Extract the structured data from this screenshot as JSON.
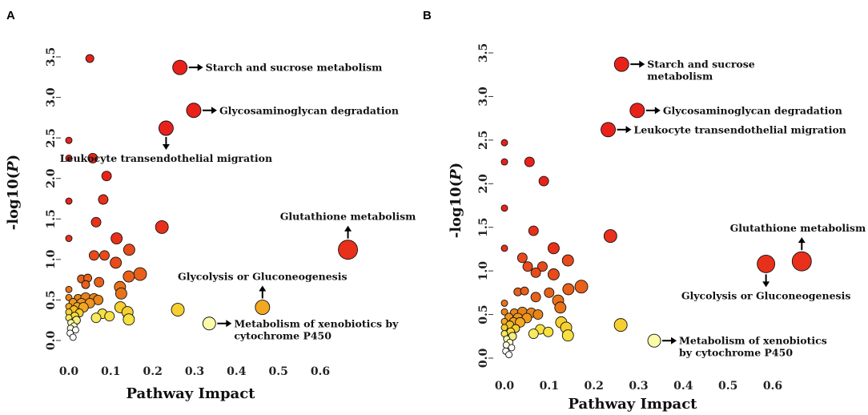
{
  "chart_data": [
    {
      "type": "scatter",
      "panel": "A",
      "xlabel": "Pathway Impact",
      "ylabel_prefix": "-log10(",
      "ylabel_italic": "P",
      "ylabel_suffix": ")",
      "xlim": [
        0,
        0.65
      ],
      "ylim": [
        0,
        3.6
      ],
      "xticks": [
        "0.0",
        "0.1",
        "0.2",
        "0.3",
        "0.4",
        "0.5",
        "0.6"
      ],
      "yticks": [
        "0.0",
        "0.5",
        "1.0",
        "1.5",
        "2.0",
        "2.5",
        "3.0",
        "3.5"
      ],
      "points": [
        {
          "x": 0.05,
          "y": 3.48,
          "r": 5,
          "color": "#e8221a"
        },
        {
          "x": 0.265,
          "y": 3.37,
          "r": 9,
          "color": "#e8221a"
        },
        {
          "x": 0.298,
          "y": 2.84,
          "r": 9,
          "color": "#e8221a"
        },
        {
          "x": 0.232,
          "y": 2.62,
          "r": 9,
          "color": "#e8221a"
        },
        {
          "x": 0.0,
          "y": 2.47,
          "r": 4,
          "color": "#e8221a"
        },
        {
          "x": 0.0,
          "y": 2.25,
          "r": 4,
          "color": "#e8221a"
        },
        {
          "x": 0.057,
          "y": 2.25,
          "r": 6,
          "color": "#e8221a"
        },
        {
          "x": 0.09,
          "y": 2.03,
          "r": 6,
          "color": "#e8221a"
        },
        {
          "x": 0.0,
          "y": 1.72,
          "r": 4,
          "color": "#e8221a"
        },
        {
          "x": 0.082,
          "y": 1.74,
          "r": 6,
          "color": "#e8301a"
        },
        {
          "x": 0.065,
          "y": 1.46,
          "r": 6,
          "color": "#e8301a"
        },
        {
          "x": 0.222,
          "y": 1.4,
          "r": 8,
          "color": "#e8301a"
        },
        {
          "x": 0.0,
          "y": 1.26,
          "r": 4,
          "color": "#e8301a"
        },
        {
          "x": 0.114,
          "y": 1.26,
          "r": 7,
          "color": "#e8301a"
        },
        {
          "x": 0.666,
          "y": 1.12,
          "r": 12,
          "color": "#e8301a"
        },
        {
          "x": 0.144,
          "y": 1.12,
          "r": 7,
          "color": "#e84a1a"
        },
        {
          "x": 0.06,
          "y": 1.05,
          "r": 6,
          "color": "#e84a1a"
        },
        {
          "x": 0.085,
          "y": 1.05,
          "r": 6,
          "color": "#e84a1a"
        },
        {
          "x": 0.112,
          "y": 0.96,
          "r": 7,
          "color": "#e84a1a"
        },
        {
          "x": 0.17,
          "y": 0.82,
          "r": 8,
          "color": "#e8601a"
        },
        {
          "x": 0.143,
          "y": 0.79,
          "r": 7,
          "color": "#e8601a"
        },
        {
          "x": 0.03,
          "y": 0.76,
          "r": 5,
          "color": "#e8601a"
        },
        {
          "x": 0.045,
          "y": 0.77,
          "r": 5,
          "color": "#e8601a"
        },
        {
          "x": 0.072,
          "y": 0.72,
          "r": 6,
          "color": "#e8601a"
        },
        {
          "x": 0.04,
          "y": 0.69,
          "r": 5,
          "color": "#e8601a"
        },
        {
          "x": 0.122,
          "y": 0.66,
          "r": 7,
          "color": "#e8721a"
        },
        {
          "x": 0.0,
          "y": 0.63,
          "r": 4,
          "color": "#e8721a"
        },
        {
          "x": 0.125,
          "y": 0.58,
          "r": 7,
          "color": "#e8721a"
        },
        {
          "x": 0.0,
          "y": 0.53,
          "r": 4,
          "color": "#e8841a"
        },
        {
          "x": 0.022,
          "y": 0.52,
          "r": 5,
          "color": "#e8841a"
        },
        {
          "x": 0.04,
          "y": 0.53,
          "r": 6,
          "color": "#e8841a"
        },
        {
          "x": 0.06,
          "y": 0.52,
          "r": 6,
          "color": "#e8841a"
        },
        {
          "x": 0.07,
          "y": 0.5,
          "r": 6,
          "color": "#e8841a"
        },
        {
          "x": 0.01,
          "y": 0.47,
          "r": 5,
          "color": "#ee961e"
        },
        {
          "x": 0.03,
          "y": 0.46,
          "r": 6,
          "color": "#ee961e"
        },
        {
          "x": 0.05,
          "y": 0.46,
          "r": 6,
          "color": "#ee961e"
        },
        {
          "x": 0.0,
          "y": 0.42,
          "r": 4,
          "color": "#f2a820"
        },
        {
          "x": 0.02,
          "y": 0.42,
          "r": 5,
          "color": "#f2a820"
        },
        {
          "x": 0.035,
          "y": 0.41,
          "r": 6,
          "color": "#f2a820"
        },
        {
          "x": 0.462,
          "y": 0.41,
          "r": 9,
          "color": "#f2a820"
        },
        {
          "x": 0.012,
          "y": 0.38,
          "r": 5,
          "color": "#f6be24"
        },
        {
          "x": 0.123,
          "y": 0.41,
          "r": 7,
          "color": "#f6d030"
        },
        {
          "x": 0.26,
          "y": 0.38,
          "r": 8,
          "color": "#f6d030"
        },
        {
          "x": 0.0,
          "y": 0.35,
          "r": 4,
          "color": "#f6d030"
        },
        {
          "x": 0.025,
          "y": 0.34,
          "r": 5,
          "color": "#f6d030"
        },
        {
          "x": 0.14,
          "y": 0.35,
          "r": 7,
          "color": "#f6d030"
        },
        {
          "x": 0.08,
          "y": 0.33,
          "r": 6,
          "color": "#f8e040"
        },
        {
          "x": 0.097,
          "y": 0.3,
          "r": 6,
          "color": "#f8e040"
        },
        {
          "x": 0.014,
          "y": 0.3,
          "r": 5,
          "color": "#f8e040"
        },
        {
          "x": 0.143,
          "y": 0.26,
          "r": 7,
          "color": "#f8e040"
        },
        {
          "x": 0.065,
          "y": 0.28,
          "r": 6,
          "color": "#f8ea60"
        },
        {
          "x": 0.0,
          "y": 0.28,
          "r": 4,
          "color": "#f8ea60"
        },
        {
          "x": 0.018,
          "y": 0.25,
          "r": 5,
          "color": "#f8ee80"
        },
        {
          "x": 0.335,
          "y": 0.21,
          "r": 8,
          "color": "#fafaa8"
        },
        {
          "x": 0.005,
          "y": 0.22,
          "r": 4,
          "color": "#fafaa8"
        },
        {
          "x": 0.012,
          "y": 0.18,
          "r": 4,
          "color": "#fafacc"
        },
        {
          "x": 0.004,
          "y": 0.15,
          "r": 4,
          "color": "#fbfbe4"
        },
        {
          "x": 0.016,
          "y": 0.13,
          "r": 4,
          "color": "#ffffff"
        },
        {
          "x": 0.003,
          "y": 0.09,
          "r": 4,
          "color": "#ffffff"
        },
        {
          "x": 0.01,
          "y": 0.04,
          "r": 4,
          "color": "#ffffff"
        }
      ],
      "annotations": [
        {
          "lines": [
            "Starch and sucrose metabolism"
          ],
          "x": 0.265,
          "y": 3.37,
          "dir": "right"
        },
        {
          "lines": [
            "Glycosaminoglycan degradation"
          ],
          "x": 0.298,
          "y": 2.84,
          "dir": "right"
        },
        {
          "lines": [
            "Leukocyte transendothelial migration"
          ],
          "x": 0.232,
          "y": 2.62,
          "dir": "down"
        },
        {
          "lines": [
            "Glutathione metabolism"
          ],
          "x": 0.666,
          "y": 1.12,
          "dir": "up"
        },
        {
          "lines": [
            "Glycolysis or Gluconeogenesis"
          ],
          "x": 0.462,
          "y": 0.41,
          "dir": "up"
        },
        {
          "lines": [
            "Metabolism of xenobiotics by",
            "cytochrome P450"
          ],
          "x": 0.335,
          "y": 0.21,
          "dir": "right"
        }
      ]
    },
    {
      "type": "scatter",
      "panel": "B",
      "xlabel": "Pathway Impact",
      "ylabel_prefix": "-log10(",
      "ylabel_italic": "P",
      "ylabel_suffix": ")",
      "xlim": [
        0,
        0.65
      ],
      "ylim": [
        0,
        3.6
      ],
      "xticks": [
        "0.0",
        "0.1",
        "0.2",
        "0.3",
        "0.4",
        "0.5",
        "0.6"
      ],
      "yticks": [
        "0.0",
        "0.5",
        "1.0",
        "1.5",
        "2.0",
        "2.5",
        "3.0",
        "3.5"
      ],
      "points": [
        {
          "x": 0.262,
          "y": 3.37,
          "r": 9,
          "color": "#e8221a"
        },
        {
          "x": 0.297,
          "y": 2.84,
          "r": 9,
          "color": "#e8221a"
        },
        {
          "x": 0.232,
          "y": 2.62,
          "r": 9,
          "color": "#e8221a"
        },
        {
          "x": 0.0,
          "y": 2.47,
          "r": 4,
          "color": "#e8221a"
        },
        {
          "x": 0.0,
          "y": 2.25,
          "r": 4,
          "color": "#e8221a"
        },
        {
          "x": 0.056,
          "y": 2.25,
          "r": 6,
          "color": "#e8221a"
        },
        {
          "x": 0.088,
          "y": 2.03,
          "r": 6,
          "color": "#e8221a"
        },
        {
          "x": 0.0,
          "y": 1.72,
          "r": 4,
          "color": "#e8221a"
        },
        {
          "x": 0.065,
          "y": 1.46,
          "r": 6,
          "color": "#e8301a"
        },
        {
          "x": 0.237,
          "y": 1.4,
          "r": 8,
          "color": "#e8301a"
        },
        {
          "x": 0.0,
          "y": 1.26,
          "r": 4,
          "color": "#e8301a"
        },
        {
          "x": 0.11,
          "y": 1.26,
          "r": 7,
          "color": "#e8301a"
        },
        {
          "x": 0.665,
          "y": 1.11,
          "r": 12,
          "color": "#e8301a"
        },
        {
          "x": 0.585,
          "y": 1.08,
          "r": 11,
          "color": "#e8301a"
        },
        {
          "x": 0.04,
          "y": 1.15,
          "r": 6,
          "color": "#e84a1a"
        },
        {
          "x": 0.142,
          "y": 1.12,
          "r": 7,
          "color": "#e84a1a"
        },
        {
          "x": 0.052,
          "y": 1.05,
          "r": 6,
          "color": "#e84a1a"
        },
        {
          "x": 0.085,
          "y": 1.05,
          "r": 6,
          "color": "#e84a1a"
        },
        {
          "x": 0.07,
          "y": 0.98,
          "r": 6,
          "color": "#e84a1a"
        },
        {
          "x": 0.11,
          "y": 0.96,
          "r": 7,
          "color": "#e84a1a"
        },
        {
          "x": 0.172,
          "y": 0.82,
          "r": 8,
          "color": "#e8601a"
        },
        {
          "x": 0.143,
          "y": 0.79,
          "r": 7,
          "color": "#e8601a"
        },
        {
          "x": 0.03,
          "y": 0.76,
          "r": 5,
          "color": "#e8601a"
        },
        {
          "x": 0.045,
          "y": 0.77,
          "r": 5,
          "color": "#e8601a"
        },
        {
          "x": 0.1,
          "y": 0.75,
          "r": 6,
          "color": "#e8601a"
        },
        {
          "x": 0.07,
          "y": 0.7,
          "r": 6,
          "color": "#e8601a"
        },
        {
          "x": 0.12,
          "y": 0.66,
          "r": 7,
          "color": "#e8721a"
        },
        {
          "x": 0.0,
          "y": 0.63,
          "r": 4,
          "color": "#e8721a"
        },
        {
          "x": 0.125,
          "y": 0.58,
          "r": 7,
          "color": "#e8721a"
        },
        {
          "x": 0.0,
          "y": 0.53,
          "r": 4,
          "color": "#e8841a"
        },
        {
          "x": 0.022,
          "y": 0.52,
          "r": 5,
          "color": "#e8841a"
        },
        {
          "x": 0.04,
          "y": 0.53,
          "r": 6,
          "color": "#e8841a"
        },
        {
          "x": 0.06,
          "y": 0.52,
          "r": 6,
          "color": "#e8841a"
        },
        {
          "x": 0.075,
          "y": 0.5,
          "r": 6,
          "color": "#e8841a"
        },
        {
          "x": 0.01,
          "y": 0.47,
          "r": 5,
          "color": "#ee961e"
        },
        {
          "x": 0.03,
          "y": 0.46,
          "r": 6,
          "color": "#ee961e"
        },
        {
          "x": 0.05,
          "y": 0.46,
          "r": 6,
          "color": "#ee961e"
        },
        {
          "x": 0.0,
          "y": 0.42,
          "r": 4,
          "color": "#f2a820"
        },
        {
          "x": 0.02,
          "y": 0.42,
          "r": 5,
          "color": "#f2a820"
        },
        {
          "x": 0.035,
          "y": 0.41,
          "r": 6,
          "color": "#f2a820"
        },
        {
          "x": 0.012,
          "y": 0.38,
          "r": 5,
          "color": "#f6be24"
        },
        {
          "x": 0.127,
          "y": 0.41,
          "r": 7,
          "color": "#f6d030"
        },
        {
          "x": 0.26,
          "y": 0.38,
          "r": 8,
          "color": "#f6d030"
        },
        {
          "x": 0.0,
          "y": 0.35,
          "r": 4,
          "color": "#f6d030"
        },
        {
          "x": 0.025,
          "y": 0.34,
          "r": 5,
          "color": "#f6d030"
        },
        {
          "x": 0.138,
          "y": 0.35,
          "r": 7,
          "color": "#f6d030"
        },
        {
          "x": 0.08,
          "y": 0.33,
          "r": 6,
          "color": "#f8e040"
        },
        {
          "x": 0.098,
          "y": 0.3,
          "r": 6,
          "color": "#f8e040"
        },
        {
          "x": 0.014,
          "y": 0.3,
          "r": 5,
          "color": "#f8e040"
        },
        {
          "x": 0.142,
          "y": 0.26,
          "r": 7,
          "color": "#f8e040"
        },
        {
          "x": 0.065,
          "y": 0.28,
          "r": 6,
          "color": "#f8ea60"
        },
        {
          "x": 0.0,
          "y": 0.28,
          "r": 4,
          "color": "#f8ea60"
        },
        {
          "x": 0.018,
          "y": 0.25,
          "r": 5,
          "color": "#f8ee80"
        },
        {
          "x": 0.335,
          "y": 0.2,
          "r": 8,
          "color": "#fafaa8"
        },
        {
          "x": 0.005,
          "y": 0.22,
          "r": 4,
          "color": "#fafaa8"
        },
        {
          "x": 0.012,
          "y": 0.18,
          "r": 4,
          "color": "#fafacc"
        },
        {
          "x": 0.004,
          "y": 0.15,
          "r": 4,
          "color": "#fbfbe4"
        },
        {
          "x": 0.016,
          "y": 0.12,
          "r": 4,
          "color": "#ffffff"
        },
        {
          "x": 0.003,
          "y": 0.08,
          "r": 4,
          "color": "#ffffff"
        },
        {
          "x": 0.01,
          "y": 0.04,
          "r": 4,
          "color": "#ffffff"
        }
      ],
      "annotations": [
        {
          "lines": [
            "Starch and sucrose",
            "metabolism"
          ],
          "x": 0.262,
          "y": 3.37,
          "dir": "right"
        },
        {
          "lines": [
            "Glycosaminoglycan degradation"
          ],
          "x": 0.297,
          "y": 2.84,
          "dir": "right"
        },
        {
          "lines": [
            "Leukocyte transendothelial migration"
          ],
          "x": 0.232,
          "y": 2.62,
          "dir": "right"
        },
        {
          "lines": [
            "Glutathione metabolism"
          ],
          "x": 0.665,
          "y": 1.11,
          "dir": "up"
        },
        {
          "lines": [
            "Glycolysis or Gluconeogenesis"
          ],
          "x": 0.585,
          "y": 1.08,
          "dir": "down"
        },
        {
          "lines": [
            "Metabolism of xenobiotics",
            "by cytochrome P450"
          ],
          "x": 0.335,
          "y": 0.2,
          "dir": "right"
        }
      ]
    }
  ]
}
